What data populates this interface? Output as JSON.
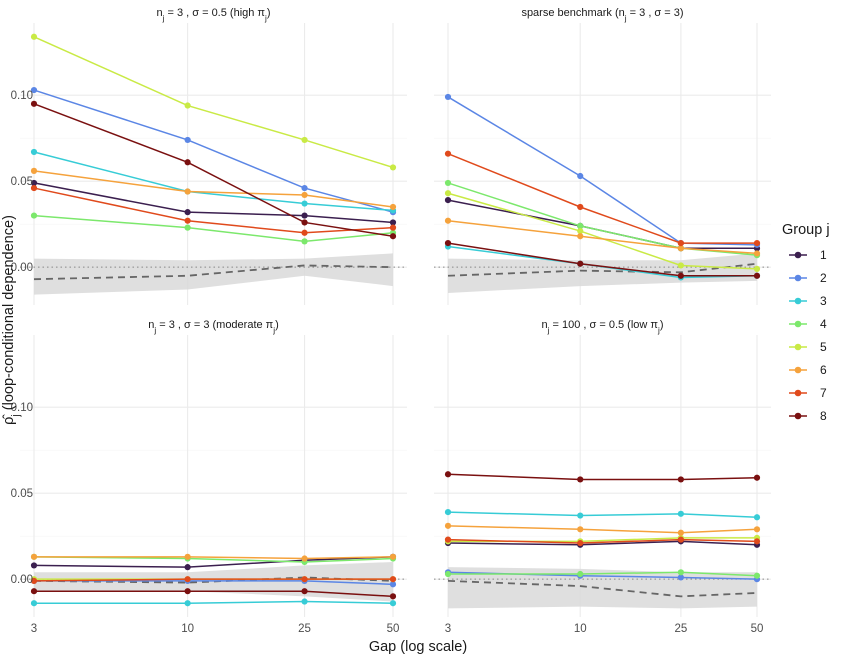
{
  "chart_data": {
    "type": "line",
    "facets": [
      {
        "title": "n_j = 3 , σ = 0.5  (high π_j)",
        "title_parts": [
          "n",
          "j",
          " = 3 , σ = 0.5  (high π",
          "j",
          ")"
        ]
      },
      {
        "title": "sparse benchmark (n_j = 3 , σ = 3)",
        "title_parts": [
          "sparse benchmark (n",
          "j",
          " = 3 , σ = 3)"
        ]
      },
      {
        "title": "n_j = 3 , σ = 3  (moderate π_j)",
        "title_parts": [
          "n",
          "j",
          " = 3 , σ = 3  (moderate π",
          "j",
          ")"
        ]
      },
      {
        "title": "n_j = 100 , σ = 0.5  (low π_j)",
        "title_parts": [
          "n",
          "j",
          " = 100 , σ = 0.5  (low π",
          "j",
          ")"
        ]
      }
    ],
    "x": [
      3,
      10,
      25,
      50
    ],
    "x_tick_labels": [
      "3",
      "10",
      "25",
      "50"
    ],
    "x_scale": "log",
    "xlabel": "Gap (log scale)",
    "ylabel": "ρ̂_j (loop-conditional dependence)",
    "ylabel_parts": [
      "ρ",
      "j",
      " (loop-conditional dependence)"
    ],
    "y_ticks": [
      0,
      0.05,
      0.1
    ],
    "y_tick_labels": [
      "0.00",
      "0.05",
      "0.10"
    ],
    "ylim": [
      -0.022,
      0.142
    ],
    "grid": true,
    "legend": {
      "title": "Group j",
      "position": "right"
    },
    "series_names": [
      "1",
      "2",
      "3",
      "4",
      "5",
      "6",
      "7",
      "8"
    ],
    "colors": [
      "#3b1f4f",
      "#5b86e5",
      "#37ccd6",
      "#7ce86c",
      "#c9ea45",
      "#f5a23c",
      "#e04a1c",
      "#7a1010"
    ],
    "null_band_color": "#d9d9d9",
    "null_line_color": "#666666",
    "panels": [
      {
        "series": [
          {
            "name": "1",
            "values": [
              0.049,
              0.032,
              0.03,
              0.026
            ]
          },
          {
            "name": "2",
            "values": [
              0.103,
              0.074,
              0.046,
              0.032
            ]
          },
          {
            "name": "3",
            "values": [
              0.067,
              0.044,
              0.037,
              0.033
            ]
          },
          {
            "name": "4",
            "values": [
              0.03,
              0.023,
              0.015,
              0.02
            ]
          },
          {
            "name": "5",
            "values": [
              0.134,
              0.094,
              0.074,
              0.058
            ]
          },
          {
            "name": "6",
            "values": [
              0.056,
              0.044,
              0.042,
              0.035
            ]
          },
          {
            "name": "7",
            "values": [
              0.046,
              0.027,
              0.02,
              0.023
            ]
          },
          {
            "name": "8",
            "values": [
              0.095,
              0.061,
              0.026,
              0.018
            ]
          }
        ],
        "null_mean": [
          -0.007,
          -0.005,
          0.001,
          0.0
        ],
        "null_lower": [
          -0.016,
          -0.013,
          -0.005,
          -0.011
        ],
        "null_upper": [
          0.005,
          0.004,
          0.005,
          0.008
        ]
      },
      {
        "series": [
          {
            "name": "1",
            "values": [
              0.039,
              0.024,
              0.011,
              0.011
            ]
          },
          {
            "name": "2",
            "values": [
              0.099,
              0.053,
              0.014,
              0.013
            ]
          },
          {
            "name": "3",
            "values": [
              0.012,
              0.002,
              -0.006,
              -0.005
            ]
          },
          {
            "name": "4",
            "values": [
              0.049,
              0.024,
              0.011,
              0.007
            ]
          },
          {
            "name": "5",
            "values": [
              0.043,
              0.021,
              0.001,
              -0.001
            ]
          },
          {
            "name": "6",
            "values": [
              0.027,
              0.018,
              0.011,
              0.008
            ]
          },
          {
            "name": "7",
            "values": [
              0.066,
              0.035,
              0.014,
              0.014
            ]
          },
          {
            "name": "8",
            "values": [
              0.014,
              0.002,
              -0.005,
              -0.005
            ]
          }
        ],
        "null_mean": [
          -0.005,
          -0.002,
          -0.003,
          0.002
        ],
        "null_lower": [
          -0.015,
          -0.011,
          -0.009,
          -0.008
        ],
        "null_upper": [
          0.005,
          0.004,
          0.004,
          0.008
        ]
      },
      {
        "series": [
          {
            "name": "1",
            "values": [
              0.008,
              0.007,
              0.011,
              0.013
            ]
          },
          {
            "name": "2",
            "values": [
              -0.001,
              -0.001,
              -0.001,
              -0.003
            ]
          },
          {
            "name": "3",
            "values": [
              -0.014,
              -0.014,
              -0.013,
              -0.014
            ]
          },
          {
            "name": "4",
            "values": [
              0.013,
              0.012,
              0.01,
              0.012
            ]
          },
          {
            "name": "5",
            "values": [
              0.0,
              0.0,
              0.0,
              0.0
            ]
          },
          {
            "name": "6",
            "values": [
              0.013,
              0.013,
              0.012,
              0.013
            ]
          },
          {
            "name": "7",
            "values": [
              -0.001,
              0.0,
              0.0,
              0.0
            ]
          },
          {
            "name": "8",
            "values": [
              -0.007,
              -0.007,
              -0.007,
              -0.01
            ]
          }
        ],
        "null_mean": [
          -0.001,
          -0.002,
          0.001,
          -0.001
        ],
        "null_lower": [
          -0.007,
          -0.007,
          -0.01,
          -0.013
        ],
        "null_upper": [
          0.004,
          0.004,
          0.008,
          0.01
        ]
      },
      {
        "series": [
          {
            "name": "1",
            "values": [
              0.021,
              0.02,
              0.022,
              0.02
            ]
          },
          {
            "name": "2",
            "values": [
              0.004,
              0.002,
              0.001,
              0.0
            ]
          },
          {
            "name": "3",
            "values": [
              0.039,
              0.037,
              0.038,
              0.036
            ]
          },
          {
            "name": "4",
            "values": [
              0.003,
              0.003,
              0.004,
              0.002
            ]
          },
          {
            "name": "5",
            "values": [
              0.022,
              0.022,
              0.024,
              0.024
            ]
          },
          {
            "name": "6",
            "values": [
              0.031,
              0.029,
              0.027,
              0.029
            ]
          },
          {
            "name": "7",
            "values": [
              0.023,
              0.021,
              0.023,
              0.022
            ]
          },
          {
            "name": "8",
            "values": [
              0.061,
              0.058,
              0.058,
              0.059
            ]
          }
        ],
        "null_mean": [
          -0.001,
          -0.004,
          -0.01,
          -0.008
        ],
        "null_lower": [
          -0.017,
          -0.016,
          -0.017,
          -0.016
        ],
        "null_upper": [
          0.007,
          0.006,
          0.004,
          0.004
        ]
      }
    ]
  }
}
